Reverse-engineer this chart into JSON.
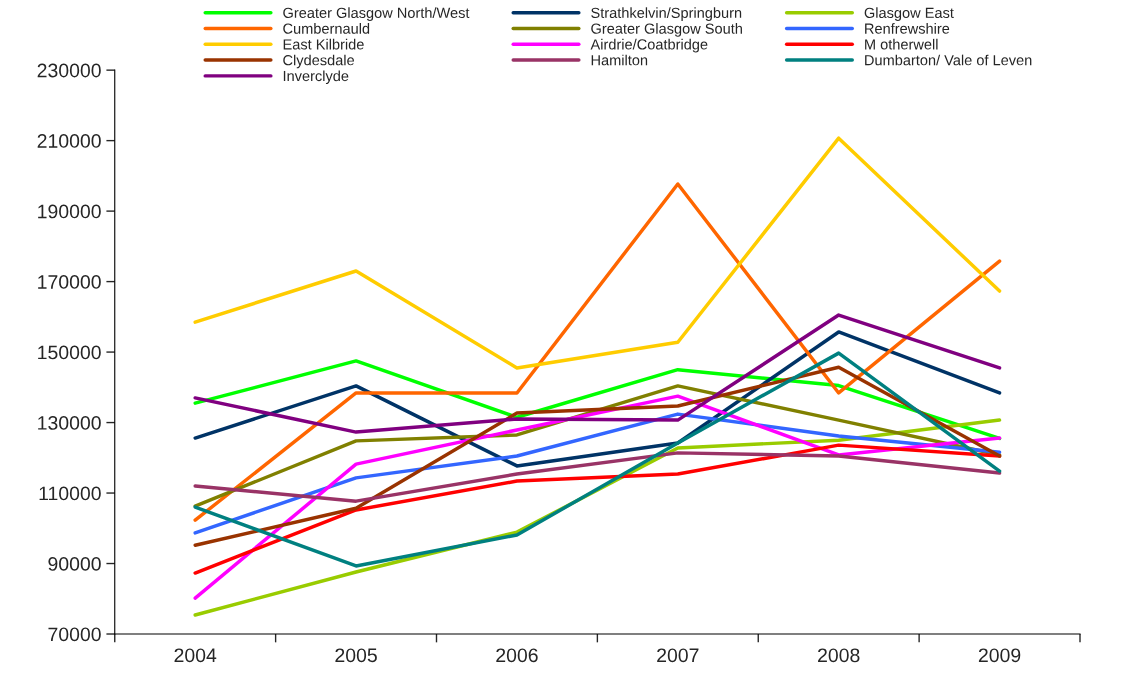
{
  "chart_data": {
    "type": "line",
    "categories": [
      "2004",
      "2005",
      "2006",
      "2007",
      "2008",
      "2009"
    ],
    "ylim": [
      70000,
      230000
    ],
    "yticks": [
      70000,
      90000,
      110000,
      130000,
      150000,
      170000,
      190000,
      210000,
      230000
    ],
    "grid": false,
    "legend": "top",
    "marker": "none",
    "line_style": "solid",
    "series": [
      {
        "name": "Greater Glasgow North/West",
        "color": "#00ff00",
        "values": [
          135500,
          147500,
          131500,
          145000,
          140500,
          125500
        ]
      },
      {
        "name": "Strathkelvin/Springburn",
        "color": "#003366",
        "values": [
          125600,
          140400,
          117700,
          124200,
          155700,
          138400
        ]
      },
      {
        "name": "Glasgow East",
        "color": "#99cc00",
        "values": [
          75400,
          87600,
          98900,
          122800,
          125000,
          130700
        ]
      },
      {
        "name": "Cumbernauld",
        "color": "#ff6600",
        "values": [
          102300,
          138400,
          138400,
          197700,
          138400,
          175800
        ]
      },
      {
        "name": "Greater Glasgow South",
        "color": "#808000",
        "values": [
          106300,
          124800,
          126500,
          140400,
          130700,
          120800
        ]
      },
      {
        "name": "Renfrewshire",
        "color": "#3366ff",
        "values": [
          98700,
          114300,
          120500,
          132400,
          126200,
          121600
        ]
      },
      {
        "name": "East Kilbride",
        "color": "#ffcc00",
        "values": [
          158500,
          173000,
          145500,
          152800,
          210700,
          167300
        ]
      },
      {
        "name": "Airdrie/Coatbridge",
        "color": "#ff00ff",
        "values": [
          80200,
          118200,
          127900,
          137500,
          120800,
          125600
        ]
      },
      {
        "name": "M otherwell",
        "color": "#ff0000",
        "values": [
          87300,
          105200,
          113400,
          115400,
          123600,
          120500
        ]
      },
      {
        "name": "Clydesdale",
        "color": "#993300",
        "values": [
          95200,
          105700,
          132700,
          134700,
          145700,
          120500
        ]
      },
      {
        "name": "Hamilton",
        "color": "#993366",
        "values": [
          112000,
          107700,
          115400,
          121400,
          120500,
          115700
        ]
      },
      {
        "name": "Dumbarton/ Vale of Leven",
        "color": "#008080",
        "values": [
          106000,
          89300,
          98100,
          124200,
          149700,
          116200
        ]
      },
      {
        "name": "Inverclyde",
        "color": "#800080",
        "values": [
          137000,
          127300,
          131000,
          130700,
          160500,
          145500
        ]
      }
    ]
  }
}
